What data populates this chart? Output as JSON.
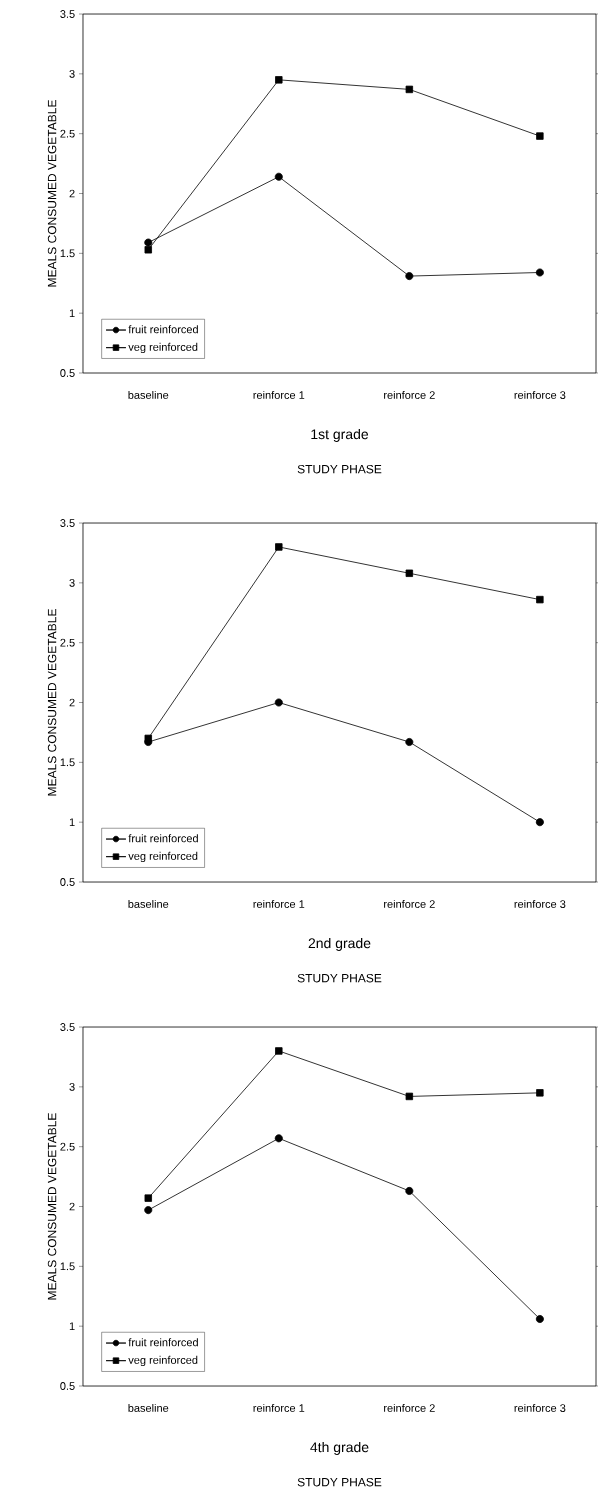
{
  "chart_data": [
    {
      "type": "line",
      "title": "1st grade",
      "xlabel": "STUDY PHASE",
      "ylabel": "MEALS CONSUMED VEGETABLE",
      "categories": [
        "baseline",
        "reinforce 1",
        "reinforce 2",
        "reinforce 3"
      ],
      "ylim": [
        0.5,
        3.5
      ],
      "yticks": [
        0.5,
        1,
        1.5,
        2,
        2.5,
        3,
        3.5
      ],
      "legend": "bottom left",
      "grid": false,
      "series": [
        {
          "name": "fruit reinforced",
          "color": "#000000",
          "marker": "circle",
          "values": [
            1.59,
            2.14,
            1.31,
            1.34
          ]
        },
        {
          "name": "veg reinforced",
          "color": "#000000",
          "marker": "square",
          "values": [
            1.53,
            2.95,
            2.87,
            2.48
          ]
        }
      ]
    },
    {
      "type": "line",
      "title": "2nd grade",
      "xlabel": "STUDY PHASE",
      "ylabel": "MEALS CONSUMED VEGETABLE",
      "categories": [
        "baseline",
        "reinforce 1",
        "reinforce 2",
        "reinforce 3"
      ],
      "ylim": [
        0.5,
        3.5
      ],
      "yticks": [
        0.5,
        1,
        1.5,
        2,
        2.5,
        3,
        3.5
      ],
      "legend": "bottom left",
      "grid": false,
      "series": [
        {
          "name": "fruit reinforced",
          "color": "#000000",
          "marker": "circle",
          "values": [
            1.67,
            2.0,
            1.67,
            1.0
          ]
        },
        {
          "name": "veg reinforced",
          "color": "#000000",
          "marker": "square",
          "values": [
            1.7,
            3.3,
            3.08,
            2.86
          ]
        }
      ]
    },
    {
      "type": "line",
      "title": "4th grade",
      "xlabel": "STUDY PHASE",
      "ylabel": "MEALS CONSUMED VEGETABLE",
      "categories": [
        "baseline",
        "reinforce 1",
        "reinforce 2",
        "reinforce 3"
      ],
      "ylim": [
        0.5,
        3.5
      ],
      "yticks": [
        0.5,
        1,
        1.5,
        2,
        2.5,
        3,
        3.5
      ],
      "legend": "bottom left",
      "grid": false,
      "series": [
        {
          "name": "fruit reinforced",
          "color": "#000000",
          "marker": "circle",
          "values": [
            1.97,
            2.57,
            2.13,
            1.06
          ]
        },
        {
          "name": "veg reinforced",
          "color": "#000000",
          "marker": "square",
          "values": [
            2.07,
            3.3,
            2.92,
            2.95
          ]
        }
      ]
    }
  ]
}
